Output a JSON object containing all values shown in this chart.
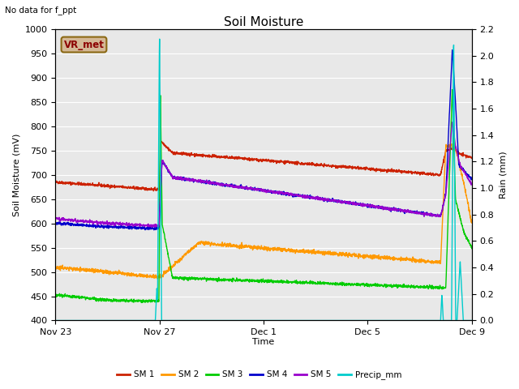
{
  "title": "Soil Moisture",
  "top_left_text": "No data for f_ppt",
  "ylabel_left": "Soil Moisture (mV)",
  "ylabel_right": "Rain (mm)",
  "xlabel": "Time",
  "ylim_left": [
    400,
    1000
  ],
  "ylim_right": [
    0.0,
    2.2
  ],
  "background_color": "#e8e8e8",
  "figure_color": "#ffffff",
  "grid_color": "#ffffff",
  "legend_box_color": "#d4b896",
  "legend_box_ec": "#8B6914",
  "legend_box_text": "VR_met",
  "x_tick_labels": [
    "Nov 23",
    "Nov 27",
    "Dec 1",
    "Dec 5",
    "Dec 9"
  ],
  "x_tick_positions": [
    0,
    4,
    8,
    12,
    16
  ],
  "series": {
    "SM1": {
      "color": "#cc2200",
      "label": "SM 1"
    },
    "SM2": {
      "color": "#ff9900",
      "label": "SM 2"
    },
    "SM3": {
      "color": "#00cc00",
      "label": "SM 3"
    },
    "SM4": {
      "color": "#0000cc",
      "label": "SM 4"
    },
    "SM5": {
      "color": "#9900cc",
      "label": "SM 5"
    },
    "Precip": {
      "color": "#00cccc",
      "label": "Precip_mm"
    }
  }
}
